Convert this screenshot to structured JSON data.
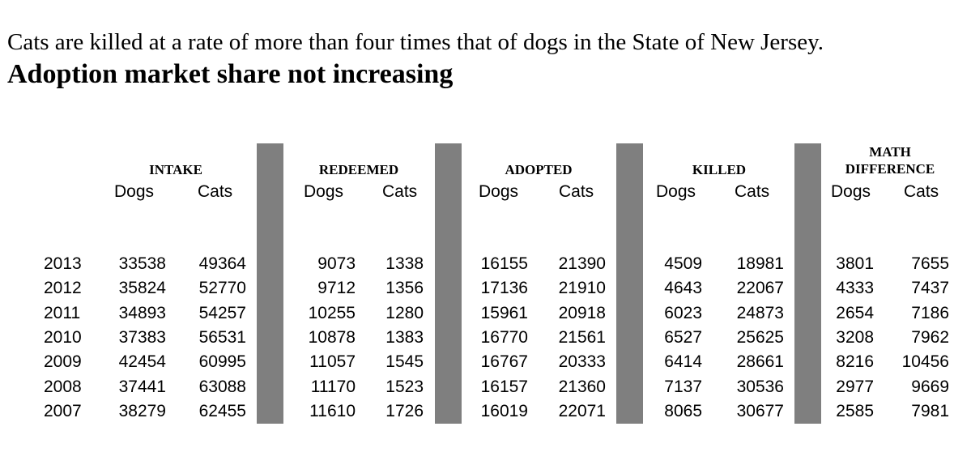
{
  "subtitle": "Cats are killed at a rate of more than four times that of dogs in the State of New Jersey.",
  "title": "Adoption market share not increasing",
  "chart_data": {
    "type": "table",
    "title": "Adoption market share not increasing",
    "subtitle": "Cats are killed at a rate of more than four times that of dogs in the State of New Jersey.",
    "groups": [
      {
        "label": "INTAKE",
        "subs": [
          "Dogs",
          "Cats"
        ]
      },
      {
        "label": "REDEEMED",
        "subs": [
          "Dogs",
          "Cats"
        ]
      },
      {
        "label": "ADOPTED",
        "subs": [
          "Dogs",
          "Cats"
        ]
      },
      {
        "label": "KILLED",
        "subs": [
          "Dogs",
          "Cats"
        ]
      },
      {
        "label": "MATH DIFFERENCE",
        "label_lines": [
          "MATH",
          "DIFFERENCE"
        ],
        "subs": [
          "Dogs",
          "Cats"
        ]
      }
    ],
    "years": [
      "2013",
      "2012",
      "2011",
      "2010",
      "2009",
      "2008",
      "2007"
    ],
    "rows": [
      [
        33538,
        49364,
        9073,
        1338,
        16155,
        21390,
        4509,
        18981,
        3801,
        7655
      ],
      [
        35824,
        52770,
        9712,
        1356,
        17136,
        21910,
        4643,
        22067,
        4333,
        7437
      ],
      [
        34893,
        54257,
        10255,
        1280,
        15961,
        20918,
        6023,
        24873,
        2654,
        7186
      ],
      [
        37383,
        56531,
        10878,
        1383,
        16770,
        21561,
        6527,
        25625,
        3208,
        7962
      ],
      [
        42454,
        60995,
        11057,
        1545,
        16767,
        20333,
        6414,
        28661,
        8216,
        10456
      ],
      [
        37441,
        63088,
        11170,
        1523,
        16157,
        21360,
        7137,
        30536,
        2977,
        9669
      ],
      [
        38279,
        62455,
        11610,
        1726,
        16019,
        22071,
        8065,
        30677,
        2585,
        7981
      ]
    ]
  },
  "colors": {
    "separator_bar": "#7f7f7f",
    "text": "#000000",
    "background": "#ffffff"
  }
}
